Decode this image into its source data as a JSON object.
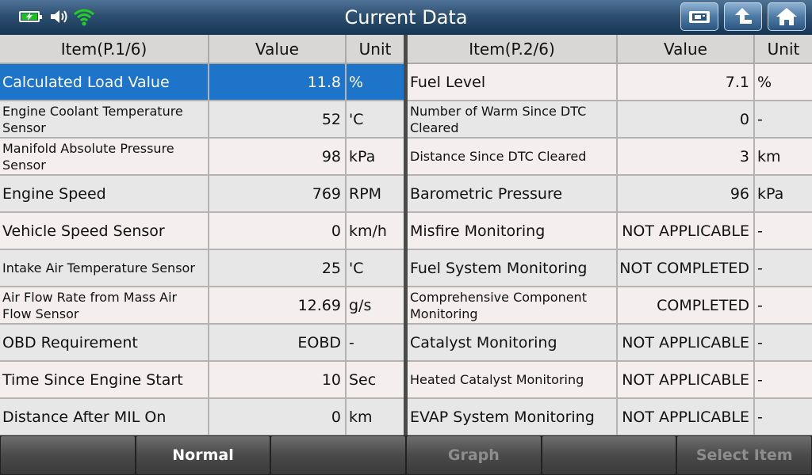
{
  "header": {
    "title": "Current Data"
  },
  "icons": {
    "battery": "battery-charging-icon",
    "speaker": "speaker-icon",
    "wifi": "wifi-icon",
    "print": "print-icon",
    "back": "back-arrow-icon",
    "home": "home-icon"
  },
  "colors": {
    "selected_row": "#1e74c8",
    "titlebar": "#2e5070",
    "wifi_green": "#22d022"
  },
  "left_table": {
    "columns": {
      "item": "Item(P.1/6)",
      "value": "Value",
      "unit": "Unit"
    },
    "rows": [
      {
        "item": "Calculated Load Value",
        "value": "11.8",
        "unit": "%"
      },
      {
        "item": "Engine Coolant Temperature Sensor",
        "value": "52",
        "unit": "'C"
      },
      {
        "item": "Manifold Absolute Pressure Sensor",
        "value": "98",
        "unit": "kPa"
      },
      {
        "item": "Engine Speed",
        "value": "769",
        "unit": "RPM"
      },
      {
        "item": "Vehicle Speed Sensor",
        "value": "0",
        "unit": "km/h"
      },
      {
        "item": "Intake Air Temperature Sensor",
        "value": "25",
        "unit": "'C"
      },
      {
        "item": "Air Flow Rate from Mass Air Flow Sensor",
        "value": "12.69",
        "unit": "g/s"
      },
      {
        "item": "OBD Requirement",
        "value": "EOBD",
        "unit": "-"
      },
      {
        "item": "Time Since Engine Start",
        "value": "10",
        "unit": "Sec"
      },
      {
        "item": "Distance After MIL On",
        "value": "0",
        "unit": "km"
      }
    ]
  },
  "right_table": {
    "columns": {
      "item": "Item(P.2/6)",
      "value": "Value",
      "unit": "Unit"
    },
    "rows": [
      {
        "item": "Fuel Level",
        "value": "7.1",
        "unit": "%"
      },
      {
        "item": "Number of Warm Since DTC Cleared",
        "value": "0",
        "unit": "-"
      },
      {
        "item": "Distance Since DTC Cleared",
        "value": "3",
        "unit": "km"
      },
      {
        "item": "Barometric Pressure",
        "value": "96",
        "unit": "kPa"
      },
      {
        "item": "Misfire Monitoring",
        "value": "NOT APPLICABLE",
        "unit": "-"
      },
      {
        "item": "Fuel System Monitoring",
        "value": "NOT COMPLETED",
        "unit": "-"
      },
      {
        "item": "Comprehensive Component Monitoring",
        "value": "COMPLETED",
        "unit": "-"
      },
      {
        "item": "Catalyst Monitoring",
        "value": "NOT APPLICABLE",
        "unit": "-"
      },
      {
        "item": "Heated Catalyst Monitoring",
        "value": "NOT APPLICABLE",
        "unit": "-"
      },
      {
        "item": "EVAP System Monitoring",
        "value": "NOT APPLICABLE",
        "unit": "-"
      }
    ]
  },
  "footer": {
    "buttons": [
      {
        "label": ""
      },
      {
        "label": "Normal"
      },
      {
        "label": ""
      },
      {
        "label": "Graph"
      },
      {
        "label": ""
      },
      {
        "label": "Select Item"
      }
    ]
  }
}
